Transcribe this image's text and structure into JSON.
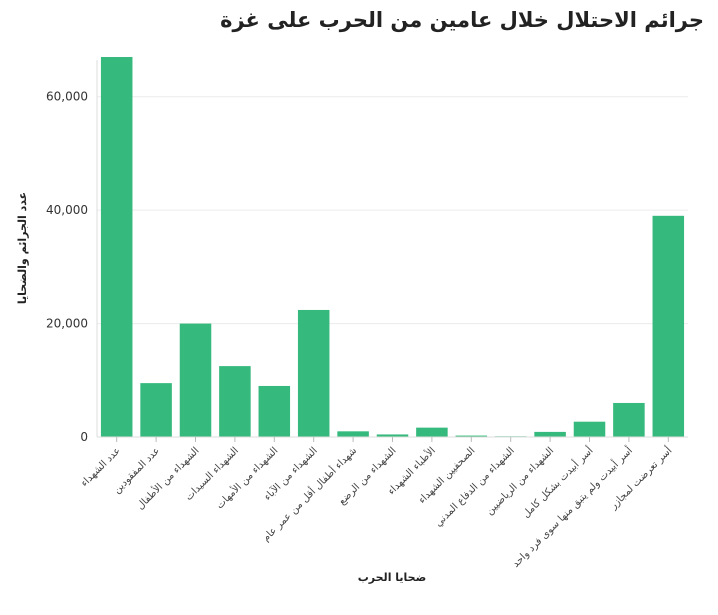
{
  "chart_data": {
    "type": "bar",
    "title": "جرائم الاحتلال خلال عامين من الحرب على غزة",
    "xlabel": "ضحايا الحرب",
    "ylabel": "عدد الجرائم والضحايا",
    "ylim": [
      0,
      70000
    ],
    "yticks": [
      0,
      20000,
      40000,
      60000
    ],
    "ytick_labels": [
      "0",
      "20,000",
      "40,000",
      "60,000"
    ],
    "grid": true,
    "bar_color": "#36b97c",
    "categories": [
      "عدد الشهداء",
      "عدد المفقودين",
      "الشهداء من الأطفال",
      "الشهداء السيدات",
      "الشهداء من الأمهات",
      "الشهداء من الآباء",
      "شهداء أطفال أقل من عمر عام",
      "الشهداء من الرضع",
      "الأطباء الشهداء",
      "الصحفيين الشهداء",
      "الشهداء من الدفاع المدني",
      "الشهداء من الرياضيين",
      "أسر أبيدت بشكل كامل",
      "أسر أبيدت ولم يتبق منها سوى فرد واحد",
      "أسر تعرضت لمجازر"
    ],
    "values": [
      67000,
      9500,
      20000,
      12500,
      9000,
      22400,
      1000,
      450,
      1650,
      250,
      130,
      900,
      2700,
      6000,
      39000
    ]
  }
}
